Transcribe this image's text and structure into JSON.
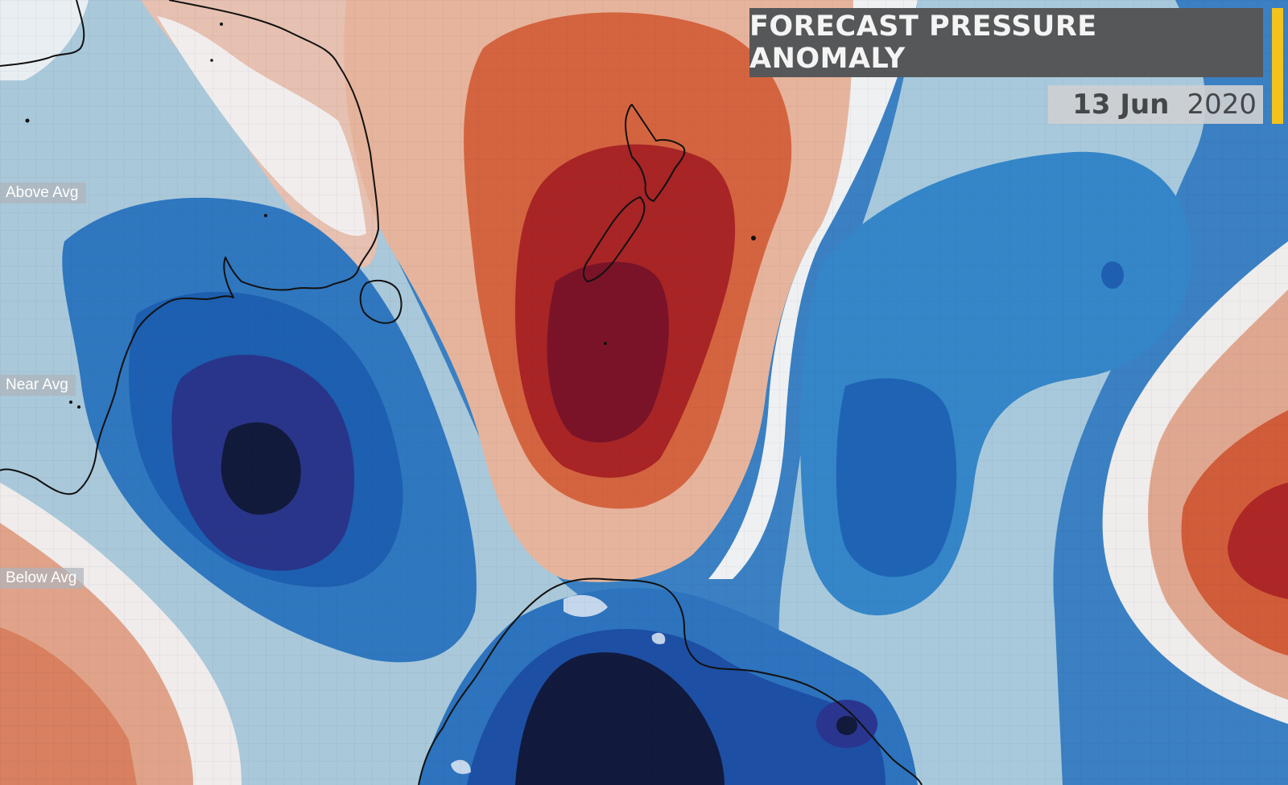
{
  "overlay": {
    "title": "FORECAST PRESSURE ANOMALY",
    "date_day": "13 Jun",
    "date_year": "2020"
  },
  "legend": {
    "above": "Above Avg",
    "near": "Near Avg",
    "below": "Below Avg"
  },
  "colors": {
    "accent": "#f3c31c",
    "title_bg": "#555759",
    "anomaly_strong_high": "#7a1227",
    "anomaly_high": "#a82324",
    "anomaly_moderate_high": "#d1603c",
    "anomaly_weak_high": "#e0a38a",
    "anomaly_near": "#f1ecec",
    "anomaly_weak_low": "#a6c6d8",
    "anomaly_moderate_low": "#2e77bf",
    "anomaly_low": "#24388a",
    "anomaly_strong_low": "#121a3c"
  }
}
